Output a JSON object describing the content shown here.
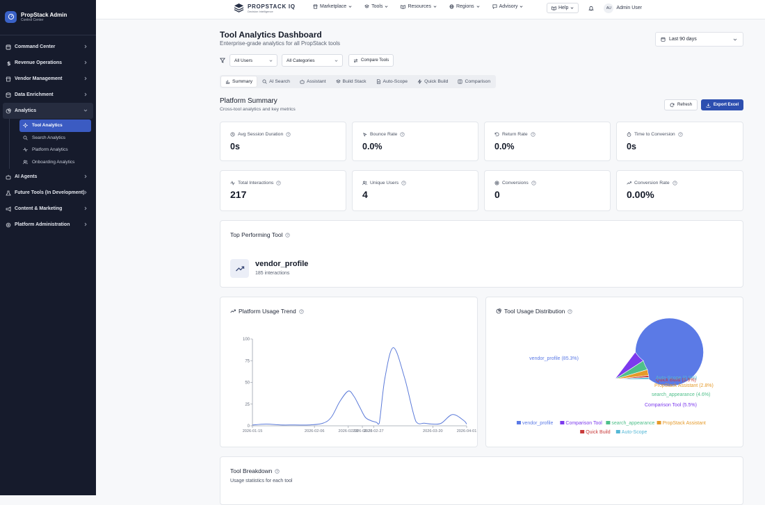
{
  "topbar": {
    "brand_name": "PROPSTACK IQ",
    "brand_sub": "Decision Intelligence",
    "nav": [
      "Marketplace",
      "Tools",
      "Resources",
      "Regions",
      "Advisory"
    ],
    "help_label": "Help",
    "avatar_initials": "AU",
    "user_name": "Admin User"
  },
  "sidebar": {
    "title": "PropStack Admin",
    "subtitle": "Control Center",
    "items": [
      {
        "label": "Command Center"
      },
      {
        "label": "Revenue Operations"
      },
      {
        "label": "Vendor Management"
      },
      {
        "label": "Data Enrichment"
      },
      {
        "label": "Analytics"
      },
      {
        "label": "AI Agents"
      },
      {
        "label": "Future Tools (In Development)"
      },
      {
        "label": "Content & Marketing"
      },
      {
        "label": "Platform Administration"
      }
    ],
    "analytics_children": [
      "Tool Analytics",
      "Search Analytics",
      "Platform Analytics",
      "Onboarding Analytics"
    ]
  },
  "page": {
    "title": "Tool Analytics Dashboard",
    "subtitle": "Enterprise-grade analytics for all PropStack tools",
    "date_range": "Last 90 days"
  },
  "filters": {
    "users": "All Users",
    "categories": "All Categories",
    "compare_label": "Compare Tools"
  },
  "tabs": [
    "Summary",
    "AI Search",
    "Assistant",
    "Build Stack",
    "Auto-Scope",
    "Quick Build",
    "Comparison"
  ],
  "summary": {
    "title": "Platform Summary",
    "subtitle": "Cross-tool analytics and key metrics",
    "refresh_label": "Refresh",
    "export_label": "Export Excel"
  },
  "metrics": [
    {
      "label": "Avg Session Duration",
      "value": "0s"
    },
    {
      "label": "Bounce Rate",
      "value": "0.0%"
    },
    {
      "label": "Return Rate",
      "value": "0.0%"
    },
    {
      "label": "Time to Conversion",
      "value": "0s"
    },
    {
      "label": "Total Interactions",
      "value": "217"
    },
    {
      "label": "Unique Users",
      "value": "4"
    },
    {
      "label": "Conversions",
      "value": "0"
    },
    {
      "label": "Conversion Rate",
      "value": "0.00%"
    }
  ],
  "top_tool": {
    "title": "Top Performing Tool",
    "name": "vendor_profile",
    "interactions": "185 interactions"
  },
  "usage_trend": {
    "title": "Platform Usage Trend"
  },
  "distribution": {
    "title": "Tool Usage Distribution"
  },
  "breakdown": {
    "title": "Tool Breakdown",
    "subtitle": "Usage statistics for each tool"
  },
  "colors": {
    "accent": "#2d4fb0",
    "sidebar_bg": "#161b2c",
    "line": "#5b7ad9"
  },
  "chart_data": [
    {
      "type": "line",
      "x": [
        "2026-01-15",
        "2026-01-20",
        "2026-01-25",
        "2026-01-30",
        "2026-02-04",
        "2026-02-09",
        "2026-02-12",
        "2026-02-15",
        "2026-02-18",
        "2026-02-20",
        "2026-02-22",
        "2026-02-24",
        "2026-02-26",
        "2026-02-28",
        "2026-03-01",
        "2026-03-03",
        "2026-03-06",
        "2026-03-10",
        "2026-03-14",
        "2026-03-17",
        "2026-03-20",
        "2026-03-23",
        "2026-03-27",
        "2026-03-31",
        "2026-04-01"
      ],
      "x_ticks": [
        "2026-01-15",
        "2026-02-06",
        "2026-02-18",
        "2026-02-23",
        "2026-02-27",
        "2026-03-20",
        "2026-04-01"
      ],
      "values": [
        1,
        2,
        1,
        1,
        1,
        3,
        10,
        28,
        40,
        34,
        22,
        10,
        6,
        4,
        3,
        55,
        90,
        55,
        5,
        3,
        2,
        3,
        13,
        6,
        2
      ],
      "ylim": [
        0,
        100
      ],
      "y_ticks": [
        0,
        25,
        50,
        75,
        100
      ]
    },
    {
      "type": "pie",
      "labels": [
        "vendor_profile",
        "Comparison Tool",
        "search_appearance",
        "PropStack Assistant",
        "Quick Build",
        "Auto-Scope"
      ],
      "values": [
        85.3,
        5.5,
        4.6,
        2.8,
        0.9,
        0.9
      ],
      "slice_labels": [
        "vendor_profile (85.3%)",
        "Comparison Tool (5.5%)",
        "search_appearance (4.6%)",
        "PropStack Assistant (2.8%)",
        "Quick Build (0.9%)",
        "Auto-Scope (0.9%)"
      ],
      "colors": [
        "#5b7ae6",
        "#7c3aed",
        "#4fbf8a",
        "#e59a2a",
        "#c83a3a",
        "#55b8d6"
      ],
      "legend": "bottom"
    }
  ]
}
